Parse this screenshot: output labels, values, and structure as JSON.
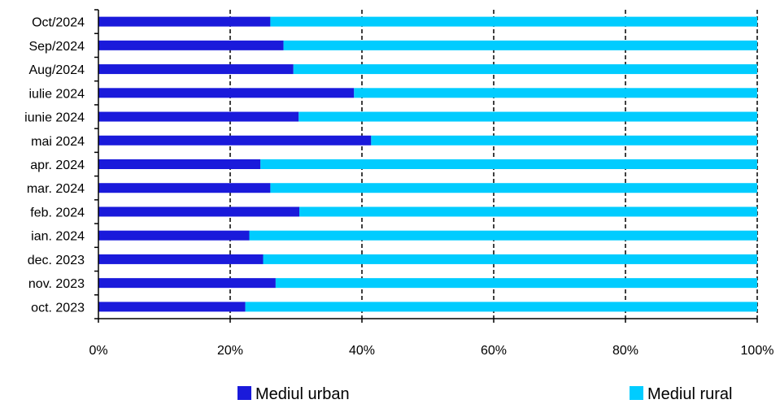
{
  "chart_data": {
    "type": "bar",
    "orientation": "horizontal",
    "stacked": "percent",
    "categories": [
      "Oct/2024",
      "Sep/2024",
      "Aug/2024",
      "iulie 2024",
      "iunie 2024",
      "mai 2024",
      "apr. 2024",
      "mar. 2024",
      "feb. 2024",
      "ian. 2024",
      "dec. 2023",
      "nov. 2023",
      "oct. 2023"
    ],
    "series": [
      {
        "name": "Mediul urban",
        "color": "#1a1adb",
        "values": [
          26.1,
          28.1,
          29.6,
          38.8,
          30.4,
          41.4,
          24.6,
          26.1,
          30.5,
          22.9,
          25.0,
          26.9,
          22.3
        ]
      },
      {
        "name": "Mediul rural",
        "color": "#00ccff",
        "values": [
          73.9,
          71.9,
          70.4,
          61.2,
          69.6,
          58.6,
          75.4,
          73.9,
          69.5,
          77.1,
          75.0,
          73.1,
          77.7
        ]
      }
    ],
    "x_ticks": [
      "0%",
      "20%",
      "40%",
      "60%",
      "80%",
      "100%"
    ],
    "xlim": [
      0,
      100
    ],
    "grid": "vertical dashed",
    "legend": "bottom",
    "title": "",
    "xlabel": "",
    "ylabel": ""
  }
}
